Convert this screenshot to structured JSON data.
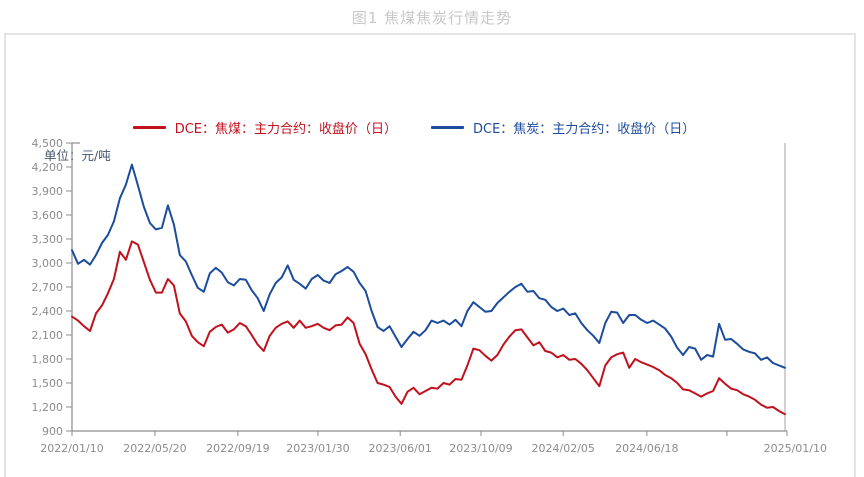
{
  "chart_data": {
    "type": "line",
    "title": "图1 焦煤焦炭行情走势",
    "unit_label": "单位：元/吨",
    "ylim": [
      900,
      4500
    ],
    "y_tick_labels": [
      "4,500",
      "4,200",
      "3,900",
      "3,600",
      "3,300",
      "3,000",
      "2,700",
      "2,400",
      "2,100",
      "1,800",
      "1,500",
      "1,200",
      "900"
    ],
    "x_tick_labels": [
      "2022/01/10",
      "2022/05/20",
      "2022/09/19",
      "2023/01/30",
      "2023/06/01",
      "2023/10/09",
      "2024/02/05",
      "2024/06/18",
      "2025/01/10"
    ],
    "x_range": [
      "2022/01/10",
      "2025/01/10"
    ],
    "grid": false,
    "legend_position": "top",
    "series": [
      {
        "name": "DCE：焦煤：主力合约：收盘价（日）",
        "color": "#c0111d",
        "values": [
          2330,
          2280,
          2210,
          2150,
          2370,
          2470,
          2620,
          2800,
          3140,
          3040,
          3270,
          3230,
          3010,
          2790,
          2630,
          2630,
          2800,
          2720,
          2370,
          2270,
          2090,
          2010,
          1960,
          2140,
          2200,
          2230,
          2130,
          2170,
          2250,
          2210,
          2100,
          1980,
          1900,
          2090,
          2190,
          2240,
          2270,
          2190,
          2280,
          2190,
          2210,
          2240,
          2190,
          2160,
          2220,
          2230,
          2320,
          2250,
          1990,
          1860,
          1670,
          1500,
          1480,
          1450,
          1330,
          1240,
          1390,
          1440,
          1360,
          1400,
          1440,
          1430,
          1500,
          1480,
          1550,
          1540,
          1720,
          1930,
          1910,
          1840,
          1780,
          1850,
          1980,
          2080,
          2160,
          2170,
          2070,
          1970,
          2010,
          1900,
          1880,
          1820,
          1850,
          1790,
          1800,
          1740,
          1660,
          1560,
          1460,
          1720,
          1820,
          1860,
          1880,
          1690,
          1800,
          1760,
          1730,
          1700,
          1660,
          1600,
          1560,
          1500,
          1420,
          1410,
          1370,
          1330,
          1370,
          1400,
          1560,
          1490,
          1430,
          1410,
          1360,
          1330,
          1290,
          1230,
          1190,
          1200,
          1150,
          1110
        ]
      },
      {
        "name": "DCE：焦炭：主力合约：收盘价（日）",
        "color": "#1c4c9c",
        "values": [
          3160,
          2990,
          3040,
          2980,
          3100,
          3250,
          3350,
          3520,
          3810,
          3980,
          4230,
          3970,
          3700,
          3500,
          3420,
          3440,
          3720,
          3480,
          3100,
          3020,
          2850,
          2690,
          2640,
          2870,
          2940,
          2880,
          2760,
          2720,
          2800,
          2790,
          2660,
          2560,
          2400,
          2610,
          2750,
          2820,
          2970,
          2790,
          2740,
          2680,
          2800,
          2850,
          2780,
          2750,
          2860,
          2900,
          2950,
          2890,
          2750,
          2650,
          2400,
          2200,
          2150,
          2210,
          2080,
          1950,
          2050,
          2140,
          2090,
          2160,
          2280,
          2250,
          2280,
          2230,
          2290,
          2210,
          2400,
          2510,
          2450,
          2390,
          2400,
          2500,
          2570,
          2640,
          2700,
          2740,
          2640,
          2650,
          2560,
          2540,
          2450,
          2400,
          2430,
          2350,
          2370,
          2250,
          2160,
          2090,
          2000,
          2250,
          2390,
          2380,
          2250,
          2350,
          2350,
          2290,
          2250,
          2280,
          2230,
          2180,
          2080,
          1940,
          1850,
          1950,
          1930,
          1790,
          1850,
          1830,
          2240,
          2040,
          2050,
          1990,
          1920,
          1890,
          1870,
          1790,
          1820,
          1750,
          1720,
          1690
        ]
      }
    ]
  }
}
